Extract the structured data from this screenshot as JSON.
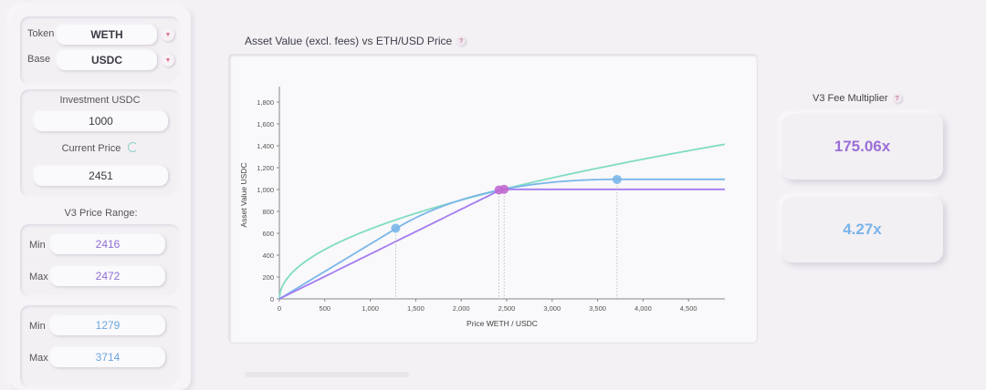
{
  "sidebar": {
    "token_label": "Token",
    "token_value": "WETH",
    "base_label": "Base",
    "base_value": "USDC",
    "investment_label": "Investment USDC",
    "investment_value": "1000",
    "current_price_label": "Current Price",
    "current_price_value": "2451",
    "v3_range_label": "V3 Price Range:",
    "range1": {
      "min_label": "Min",
      "min_value": "2416",
      "max_label": "Max",
      "max_value": "2472",
      "color": "#8c6fd6"
    },
    "range2": {
      "min_label": "Min",
      "min_value": "1279",
      "max_label": "Max",
      "max_value": "3714",
      "color": "#6aa6e0"
    }
  },
  "chart": {
    "title": "Asset Value (excl. fees) vs ETH/USD Price",
    "help_icon": "question-icon"
  },
  "fees": {
    "title": "V3 Fee Multiplier",
    "help_icon": "question-icon",
    "value1": "175.06x",
    "value1_color": "#9a6fd6",
    "value2": "4.27x",
    "value2_color": "#7ab4ea"
  },
  "chart_data": {
    "type": "line",
    "xlabel": "Price WETH / USDC",
    "ylabel": "Asset Value USDC",
    "xlim": [
      0,
      4900
    ],
    "ylim": [
      0,
      1900
    ],
    "x_ticks": [
      0,
      500,
      1000,
      1500,
      2000,
      2500,
      3000,
      3500,
      4000,
      4500
    ],
    "y_ticks": [
      0,
      200,
      400,
      600,
      800,
      1000,
      1200,
      1400,
      1600,
      1800
    ],
    "current_price": 2451,
    "investment": 1000,
    "series": [
      {
        "color": "#7fdcc4",
        "kind": "v2"
      },
      {
        "color": "#7ab6ea",
        "kind": "v3",
        "pmin": 1279,
        "pmax": 3714
      },
      {
        "color": "#a37cf0",
        "kind": "v3",
        "pmin": 2416,
        "pmax": 2472
      }
    ],
    "markers": [
      {
        "x": 1279,
        "y": 646,
        "color": "#7ab6ea"
      },
      {
        "x": 3714,
        "y": 1092,
        "color": "#7ab6ea"
      },
      {
        "x": 2416,
        "y": 996,
        "color": "#c06ad0"
      },
      {
        "x": 2472,
        "y": 1002,
        "color": "#c06ad0"
      }
    ]
  }
}
